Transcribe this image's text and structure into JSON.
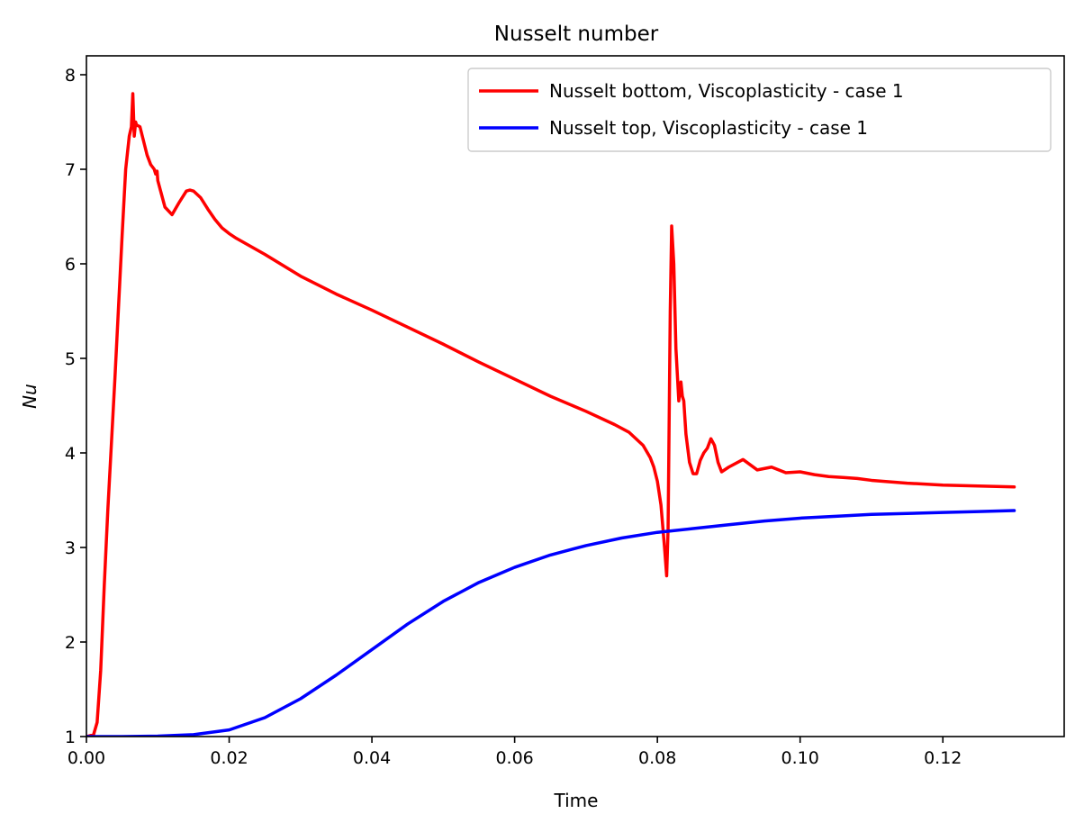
{
  "chart_data": {
    "type": "line",
    "title": "Nusselt number",
    "xlabel": "Time",
    "ylabel": "Nu",
    "xlim": [
      0.0,
      0.137
    ],
    "ylim": [
      1.0,
      8.2
    ],
    "xticks": [
      0.0,
      0.02,
      0.04,
      0.06,
      0.08,
      0.1,
      0.12
    ],
    "xtick_labels": [
      "0.00",
      "0.02",
      "0.04",
      "0.06",
      "0.08",
      "0.10",
      "0.12"
    ],
    "yticks": [
      1,
      2,
      3,
      4,
      5,
      6,
      7,
      8
    ],
    "ytick_labels": [
      "1",
      "2",
      "3",
      "4",
      "5",
      "6",
      "7",
      "8"
    ],
    "grid": false,
    "legend_position": "top-right",
    "series": [
      {
        "name": "Nusselt bottom, Viscoplasticity - case 1",
        "color": "#ff0000",
        "x": [
          0.0,
          0.001,
          0.0015,
          0.002,
          0.0025,
          0.003,
          0.004,
          0.005,
          0.0055,
          0.006,
          0.0063,
          0.0065,
          0.0067,
          0.0069,
          0.007,
          0.0075,
          0.008,
          0.0085,
          0.009,
          0.0095,
          0.0097,
          0.0099,
          0.01,
          0.011,
          0.012,
          0.013,
          0.014,
          0.0145,
          0.015,
          0.016,
          0.017,
          0.018,
          0.019,
          0.02,
          0.021,
          0.025,
          0.03,
          0.035,
          0.04,
          0.045,
          0.05,
          0.055,
          0.06,
          0.065,
          0.07,
          0.074,
          0.076,
          0.078,
          0.079,
          0.0795,
          0.08,
          0.0805,
          0.081,
          0.0813,
          0.0815,
          0.0818,
          0.082,
          0.0823,
          0.0826,
          0.083,
          0.0833,
          0.0835,
          0.0837,
          0.084,
          0.0845,
          0.085,
          0.0855,
          0.086,
          0.0865,
          0.087,
          0.0875,
          0.088,
          0.0885,
          0.089,
          0.09,
          0.092,
          0.094,
          0.096,
          0.098,
          0.1,
          0.102,
          0.104,
          0.106,
          0.108,
          0.11,
          0.115,
          0.12,
          0.125,
          0.13
        ],
        "y": [
          1.0,
          1.02,
          1.15,
          1.7,
          2.6,
          3.4,
          4.8,
          6.3,
          7.0,
          7.35,
          7.45,
          7.8,
          7.35,
          7.5,
          7.47,
          7.45,
          7.3,
          7.15,
          7.05,
          7.0,
          6.95,
          6.98,
          6.88,
          6.6,
          6.52,
          6.65,
          6.77,
          6.78,
          6.77,
          6.7,
          6.58,
          6.47,
          6.38,
          6.32,
          6.27,
          6.1,
          5.87,
          5.68,
          5.51,
          5.33,
          5.15,
          4.96,
          4.78,
          4.6,
          4.44,
          4.3,
          4.22,
          4.08,
          3.95,
          3.85,
          3.7,
          3.45,
          3.0,
          2.7,
          3.2,
          5.5,
          6.4,
          6.0,
          5.1,
          4.55,
          4.75,
          4.6,
          4.55,
          4.2,
          3.9,
          3.78,
          3.78,
          3.92,
          4.0,
          4.05,
          4.15,
          4.08,
          3.9,
          3.8,
          3.85,
          3.93,
          3.82,
          3.85,
          3.79,
          3.8,
          3.77,
          3.75,
          3.74,
          3.73,
          3.71,
          3.68,
          3.66,
          3.65,
          3.64
        ]
      },
      {
        "name": "Nusselt top, Viscoplasticity - case 1",
        "color": "#0000ff",
        "x": [
          0.0,
          0.005,
          0.01,
          0.015,
          0.02,
          0.025,
          0.03,
          0.035,
          0.04,
          0.045,
          0.05,
          0.055,
          0.06,
          0.065,
          0.07,
          0.075,
          0.08,
          0.085,
          0.09,
          0.095,
          0.1,
          0.105,
          0.11,
          0.115,
          0.12,
          0.125,
          0.13
        ],
        "y": [
          1.0,
          1.0,
          1.005,
          1.02,
          1.07,
          1.2,
          1.4,
          1.65,
          1.92,
          2.19,
          2.43,
          2.63,
          2.79,
          2.92,
          3.02,
          3.1,
          3.16,
          3.2,
          3.24,
          3.28,
          3.31,
          3.33,
          3.35,
          3.36,
          3.37,
          3.38,
          3.39
        ]
      }
    ]
  }
}
